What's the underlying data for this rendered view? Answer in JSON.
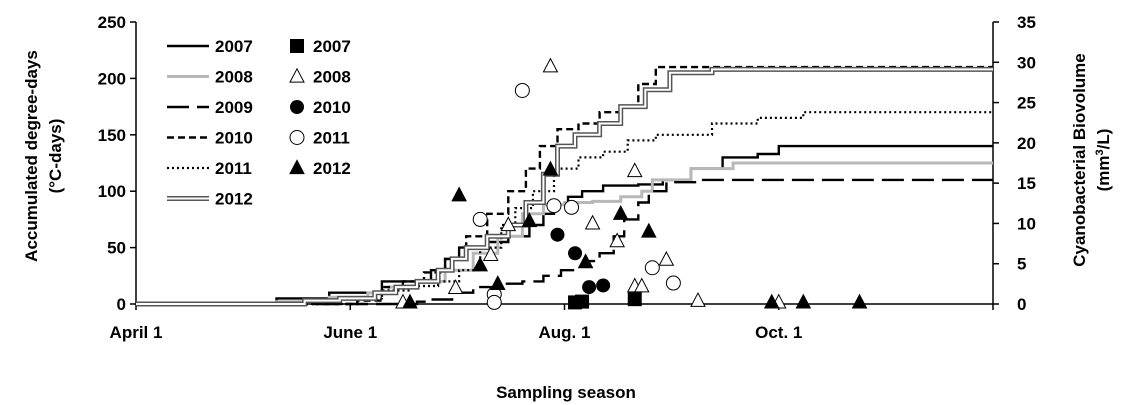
{
  "chart_data": {
    "type": "line",
    "xlabel": "Sampling season",
    "ylabel_left": [
      "Accumulated degree-days",
      "(°C-days)"
    ],
    "ylabel_right": [
      "Cyanobacterial Biovolume",
      "(mm",
      "3",
      "/L)"
    ],
    "x_domain": [
      0,
      244
    ],
    "x_ticks": [
      {
        "label": "April 1",
        "x": 0
      },
      {
        "label": "June 1",
        "x": 61
      },
      {
        "label": "Aug. 1",
        "x": 122
      },
      {
        "label": "Oct. 1",
        "x": 183
      }
    ],
    "ylim_left": [
      0,
      250
    ],
    "yticks_left": [
      0,
      50,
      100,
      150,
      200,
      250
    ],
    "ylim_right": [
      0,
      35
    ],
    "yticks_right": [
      0,
      5,
      10,
      15,
      20,
      25,
      30,
      35
    ],
    "legend_lines": [
      {
        "name": "2007",
        "style": "solid-black"
      },
      {
        "name": "2008",
        "style": "solid-gray"
      },
      {
        "name": "2009",
        "style": "long-dash"
      },
      {
        "name": "2010",
        "style": "short-dash"
      },
      {
        "name": "2011",
        "style": "dotted"
      },
      {
        "name": "2012",
        "style": "double"
      }
    ],
    "legend_markers": [
      {
        "name": "2007",
        "marker": "square-filled"
      },
      {
        "name": "2008",
        "marker": "triangle-open"
      },
      {
        "name": "2010",
        "marker": "circle-filled"
      },
      {
        "name": "2011",
        "marker": "circle-open"
      },
      {
        "name": "2012",
        "marker": "triangle-filled"
      }
    ],
    "lines": [
      {
        "name": "2007",
        "style": "solid-black",
        "points": [
          [
            0,
            0
          ],
          [
            20,
            0
          ],
          [
            40,
            5
          ],
          [
            55,
            10
          ],
          [
            66,
            10
          ],
          [
            70,
            20
          ],
          [
            78,
            20
          ],
          [
            84,
            30
          ],
          [
            88,
            40
          ],
          [
            92,
            50
          ],
          [
            100,
            55
          ],
          [
            106,
            60
          ],
          [
            112,
            70
          ],
          [
            116,
            80
          ],
          [
            119,
            88
          ],
          [
            123,
            95
          ],
          [
            127,
            100
          ],
          [
            133,
            105
          ],
          [
            143,
            106
          ],
          [
            150,
            110
          ],
          [
            158,
            120
          ],
          [
            167,
            130
          ],
          [
            177,
            133
          ],
          [
            183,
            140
          ],
          [
            244,
            140
          ]
        ]
      },
      {
        "name": "2008",
        "style": "solid-gray",
        "points": [
          [
            0,
            0
          ],
          [
            20,
            0
          ],
          [
            40,
            2
          ],
          [
            55,
            6
          ],
          [
            66,
            10
          ],
          [
            72,
            15
          ],
          [
            80,
            20
          ],
          [
            88,
            30
          ],
          [
            96,
            45
          ],
          [
            103,
            60
          ],
          [
            110,
            80
          ],
          [
            116,
            88
          ],
          [
            122,
            90
          ],
          [
            130,
            91
          ],
          [
            138,
            95
          ],
          [
            144,
            100
          ],
          [
            147,
            110
          ],
          [
            158,
            120
          ],
          [
            170,
            125
          ],
          [
            244,
            125
          ]
        ]
      },
      {
        "name": "2009",
        "style": "long-dash",
        "points": [
          [
            0,
            0
          ],
          [
            50,
            0
          ],
          [
            70,
            0
          ],
          [
            80,
            2
          ],
          [
            84,
            4
          ],
          [
            90,
            10
          ],
          [
            96,
            15
          ],
          [
            104,
            18
          ],
          [
            110,
            20
          ],
          [
            116,
            25
          ],
          [
            121,
            30
          ],
          [
            126,
            33
          ],
          [
            129,
            38
          ],
          [
            132,
            45
          ],
          [
            136,
            60
          ],
          [
            139,
            75
          ],
          [
            143,
            90
          ],
          [
            146,
            100
          ],
          [
            151,
            108
          ],
          [
            160,
            110
          ],
          [
            244,
            110
          ]
        ]
      },
      {
        "name": "2010",
        "style": "short-dash",
        "points": [
          [
            0,
            0
          ],
          [
            50,
            0
          ],
          [
            63,
            3
          ],
          [
            70,
            15
          ],
          [
            76,
            20
          ],
          [
            82,
            28
          ],
          [
            88,
            40
          ],
          [
            94,
            60
          ],
          [
            100,
            80
          ],
          [
            106,
            100
          ],
          [
            111,
            120
          ],
          [
            115,
            140
          ],
          [
            120,
            155
          ],
          [
            126,
            160
          ],
          [
            132,
            170
          ],
          [
            138,
            175
          ],
          [
            143,
            195
          ],
          [
            148,
            210
          ],
          [
            160,
            210
          ],
          [
            244,
            210
          ]
        ]
      },
      {
        "name": "2011",
        "style": "dotted",
        "points": [
          [
            0,
            0
          ],
          [
            50,
            0
          ],
          [
            63,
            5
          ],
          [
            70,
            12
          ],
          [
            78,
            16
          ],
          [
            86,
            20
          ],
          [
            92,
            30
          ],
          [
            98,
            50
          ],
          [
            104,
            70
          ],
          [
            108,
            85
          ],
          [
            113,
            100
          ],
          [
            119,
            120
          ],
          [
            126,
            130
          ],
          [
            133,
            135
          ],
          [
            140,
            145
          ],
          [
            148,
            150
          ],
          [
            157,
            150
          ],
          [
            164,
            160
          ],
          [
            177,
            165
          ],
          [
            190,
            170
          ],
          [
            244,
            170
          ]
        ]
      },
      {
        "name": "2012",
        "style": "double",
        "points": [
          [
            0,
            0
          ],
          [
            20,
            0
          ],
          [
            48,
            3
          ],
          [
            58,
            5
          ],
          [
            68,
            10
          ],
          [
            74,
            15
          ],
          [
            80,
            20
          ],
          [
            86,
            30
          ],
          [
            90,
            40
          ],
          [
            94,
            50
          ],
          [
            100,
            60
          ],
          [
            106,
            70
          ],
          [
            111,
            90
          ],
          [
            116,
            115
          ],
          [
            120,
            140
          ],
          [
            125,
            150
          ],
          [
            132,
            160
          ],
          [
            138,
            175
          ],
          [
            145,
            190
          ],
          [
            152,
            205
          ],
          [
            164,
            208
          ],
          [
            244,
            208
          ]
        ]
      }
    ],
    "points": [
      {
        "name": "2007",
        "marker": "square-filled",
        "data": [
          [
            125,
            0.2
          ],
          [
            127,
            0.3
          ],
          [
            142,
            0.6
          ]
        ]
      },
      {
        "name": "2008",
        "marker": "triangle-open",
        "data": [
          [
            76,
            0.2
          ],
          [
            91,
            2.0
          ],
          [
            101,
            6.1
          ],
          [
            106,
            9.8
          ],
          [
            118,
            29.5
          ],
          [
            130,
            10.0
          ],
          [
            137,
            7.8
          ],
          [
            142,
            16.5
          ],
          [
            142,
            2.2
          ],
          [
            144,
            2.2
          ],
          [
            151,
            5.5
          ],
          [
            160,
            0.4
          ],
          [
            183,
            0.2
          ]
        ]
      },
      {
        "name": "2010",
        "marker": "circle-filled",
        "data": [
          [
            120,
            8.6
          ],
          [
            125,
            6.3
          ],
          [
            129,
            2.1
          ],
          [
            133,
            2.3
          ]
        ]
      },
      {
        "name": "2011",
        "marker": "circle-open",
        "data": [
          [
            98,
            10.5
          ],
          [
            102,
            1.2
          ],
          [
            102,
            0.2
          ],
          [
            110,
            26.5
          ],
          [
            119,
            12.2
          ],
          [
            124,
            12.0
          ],
          [
            147,
            4.5
          ],
          [
            153,
            2.6
          ]
        ]
      },
      {
        "name": "2012",
        "marker": "triangle-filled",
        "data": [
          [
            78,
            0.2
          ],
          [
            92,
            13.5
          ],
          [
            98,
            4.8
          ],
          [
            103,
            2.5
          ],
          [
            112,
            10.3
          ],
          [
            118,
            16.7
          ],
          [
            128,
            5.2
          ],
          [
            138,
            11.2
          ],
          [
            146,
            9.0
          ],
          [
            181,
            0.2
          ],
          [
            190,
            0.2
          ],
          [
            206,
            0.2
          ]
        ]
      }
    ]
  }
}
